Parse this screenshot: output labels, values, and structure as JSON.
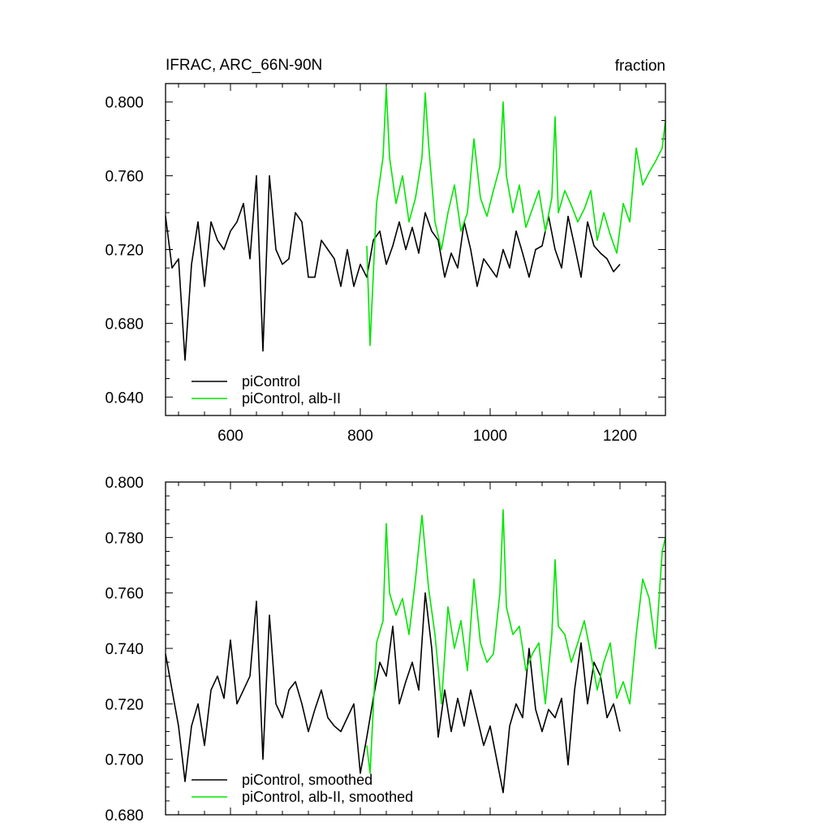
{
  "colors": {
    "control": "#000000",
    "albII": "#00e600"
  },
  "chart_data": [
    {
      "type": "line",
      "title": "IFRAC, ARC_66N-90N",
      "units": "fraction",
      "xlim": [
        500,
        1270
      ],
      "ylim": [
        0.63,
        0.81
      ],
      "xticks": [
        600,
        800,
        1000,
        1200
      ],
      "xtick_labels": [
        "600",
        "800",
        "1000",
        "1200"
      ],
      "yticks": [
        0.64,
        0.68,
        0.72,
        0.76,
        0.8
      ],
      "ytick_labels": [
        "0.640",
        "0.680",
        "0.720",
        "0.760",
        "0.800"
      ],
      "legend": "bottom-left",
      "series": [
        {
          "name": "piControl",
          "color": "#000000",
          "x": [
            500,
            510,
            520,
            530,
            540,
            550,
            560,
            570,
            580,
            590,
            600,
            610,
            620,
            630,
            640,
            650,
            660,
            670,
            680,
            690,
            700,
            710,
            720,
            730,
            740,
            750,
            760,
            770,
            780,
            790,
            800,
            810,
            820,
            830,
            840,
            850,
            860,
            870,
            880,
            890,
            900,
            910,
            920,
            930,
            940,
            950,
            960,
            970,
            980,
            990,
            1000,
            1010,
            1020,
            1030,
            1040,
            1050,
            1060,
            1070,
            1080,
            1090,
            1100,
            1110,
            1120,
            1130,
            1140,
            1150,
            1160,
            1170,
            1180,
            1190,
            1200
          ],
          "y": [
            0.738,
            0.71,
            0.715,
            0.66,
            0.712,
            0.735,
            0.7,
            0.735,
            0.725,
            0.72,
            0.73,
            0.735,
            0.745,
            0.715,
            0.76,
            0.665,
            0.76,
            0.72,
            0.712,
            0.715,
            0.74,
            0.735,
            0.705,
            0.705,
            0.725,
            0.72,
            0.715,
            0.7,
            0.72,
            0.7,
            0.712,
            0.705,
            0.725,
            0.73,
            0.712,
            0.722,
            0.735,
            0.72,
            0.732,
            0.718,
            0.74,
            0.73,
            0.725,
            0.705,
            0.718,
            0.71,
            0.735,
            0.72,
            0.7,
            0.715,
            0.71,
            0.705,
            0.72,
            0.71,
            0.73,
            0.718,
            0.705,
            0.72,
            0.722,
            0.738,
            0.72,
            0.71,
            0.738,
            0.722,
            0.705,
            0.735,
            0.722,
            0.718,
            0.715,
            0.708,
            0.712
          ]
        },
        {
          "name": "piControl, alb-II",
          "color": "#00e600",
          "x": [
            810,
            815,
            825,
            835,
            840,
            845,
            855,
            865,
            875,
            885,
            895,
            900,
            905,
            915,
            925,
            935,
            945,
            955,
            965,
            975,
            985,
            995,
            1005,
            1015,
            1020,
            1025,
            1035,
            1045,
            1055,
            1065,
            1075,
            1085,
            1095,
            1100,
            1105,
            1115,
            1125,
            1135,
            1145,
            1155,
            1165,
            1175,
            1185,
            1195,
            1205,
            1215,
            1225,
            1235,
            1245,
            1255,
            1265,
            1270
          ],
          "y": [
            0.722,
            0.668,
            0.745,
            0.77,
            0.808,
            0.77,
            0.745,
            0.76,
            0.735,
            0.748,
            0.77,
            0.805,
            0.778,
            0.735,
            0.72,
            0.74,
            0.755,
            0.73,
            0.74,
            0.78,
            0.748,
            0.738,
            0.752,
            0.765,
            0.8,
            0.76,
            0.74,
            0.755,
            0.732,
            0.742,
            0.752,
            0.73,
            0.748,
            0.792,
            0.74,
            0.752,
            0.744,
            0.735,
            0.742,
            0.752,
            0.725,
            0.74,
            0.728,
            0.718,
            0.745,
            0.735,
            0.775,
            0.755,
            0.762,
            0.768,
            0.775,
            0.79
          ]
        }
      ]
    },
    {
      "type": "line",
      "title": "",
      "units": "",
      "xlim": [
        500,
        1270
      ],
      "ylim": [
        0.68,
        0.8
      ],
      "xticks": [
        600,
        800,
        1000,
        1200
      ],
      "xtick_labels": [],
      "yticks": [
        0.68,
        0.7,
        0.72,
        0.74,
        0.76,
        0.78,
        0.8
      ],
      "ytick_labels": [
        "0.680",
        "0.700",
        "0.720",
        "0.740",
        "0.760",
        "0.780",
        "0.800"
      ],
      "legend": "bottom-left",
      "series": [
        {
          "name": "piControl, smoothed",
          "color": "#000000",
          "x": [
            500,
            510,
            520,
            530,
            540,
            550,
            560,
            570,
            580,
            590,
            600,
            610,
            620,
            630,
            640,
            650,
            660,
            670,
            680,
            690,
            700,
            710,
            720,
            730,
            740,
            750,
            760,
            770,
            780,
            790,
            800,
            810,
            820,
            830,
            840,
            850,
            860,
            870,
            880,
            890,
            900,
            910,
            920,
            930,
            940,
            950,
            960,
            970,
            980,
            990,
            1000,
            1010,
            1020,
            1030,
            1040,
            1050,
            1060,
            1070,
            1080,
            1090,
            1100,
            1110,
            1120,
            1130,
            1140,
            1150,
            1160,
            1170,
            1180,
            1190,
            1200
          ],
          "y": [
            0.738,
            0.725,
            0.712,
            0.692,
            0.712,
            0.72,
            0.705,
            0.725,
            0.73,
            0.722,
            0.743,
            0.72,
            0.725,
            0.73,
            0.757,
            0.7,
            0.752,
            0.72,
            0.715,
            0.725,
            0.728,
            0.72,
            0.71,
            0.718,
            0.725,
            0.715,
            0.712,
            0.71,
            0.715,
            0.72,
            0.695,
            0.708,
            0.722,
            0.735,
            0.73,
            0.748,
            0.72,
            0.728,
            0.735,
            0.725,
            0.76,
            0.74,
            0.708,
            0.725,
            0.71,
            0.722,
            0.712,
            0.725,
            0.715,
            0.705,
            0.712,
            0.7,
            0.688,
            0.712,
            0.72,
            0.715,
            0.74,
            0.718,
            0.71,
            0.718,
            0.715,
            0.722,
            0.698,
            0.725,
            0.742,
            0.72,
            0.735,
            0.73,
            0.715,
            0.72,
            0.71
          ]
        },
        {
          "name": "piControl, alb-II, smoothed",
          "color": "#00e600",
          "x": [
            810,
            815,
            825,
            835,
            840,
            845,
            855,
            865,
            875,
            885,
            895,
            900,
            905,
            915,
            925,
            935,
            945,
            955,
            965,
            975,
            985,
            995,
            1005,
            1015,
            1020,
            1025,
            1035,
            1045,
            1055,
            1065,
            1075,
            1085,
            1095,
            1100,
            1105,
            1115,
            1125,
            1135,
            1145,
            1155,
            1165,
            1175,
            1185,
            1195,
            1205,
            1215,
            1225,
            1235,
            1245,
            1255,
            1265,
            1270
          ],
          "y": [
            0.705,
            0.695,
            0.742,
            0.75,
            0.785,
            0.76,
            0.752,
            0.758,
            0.745,
            0.765,
            0.788,
            0.775,
            0.762,
            0.745,
            0.72,
            0.755,
            0.74,
            0.75,
            0.732,
            0.765,
            0.742,
            0.735,
            0.738,
            0.76,
            0.79,
            0.755,
            0.745,
            0.748,
            0.732,
            0.738,
            0.742,
            0.72,
            0.745,
            0.772,
            0.748,
            0.745,
            0.735,
            0.742,
            0.75,
            0.738,
            0.725,
            0.735,
            0.742,
            0.722,
            0.728,
            0.72,
            0.745,
            0.765,
            0.758,
            0.74,
            0.775,
            0.78
          ]
        }
      ]
    }
  ]
}
